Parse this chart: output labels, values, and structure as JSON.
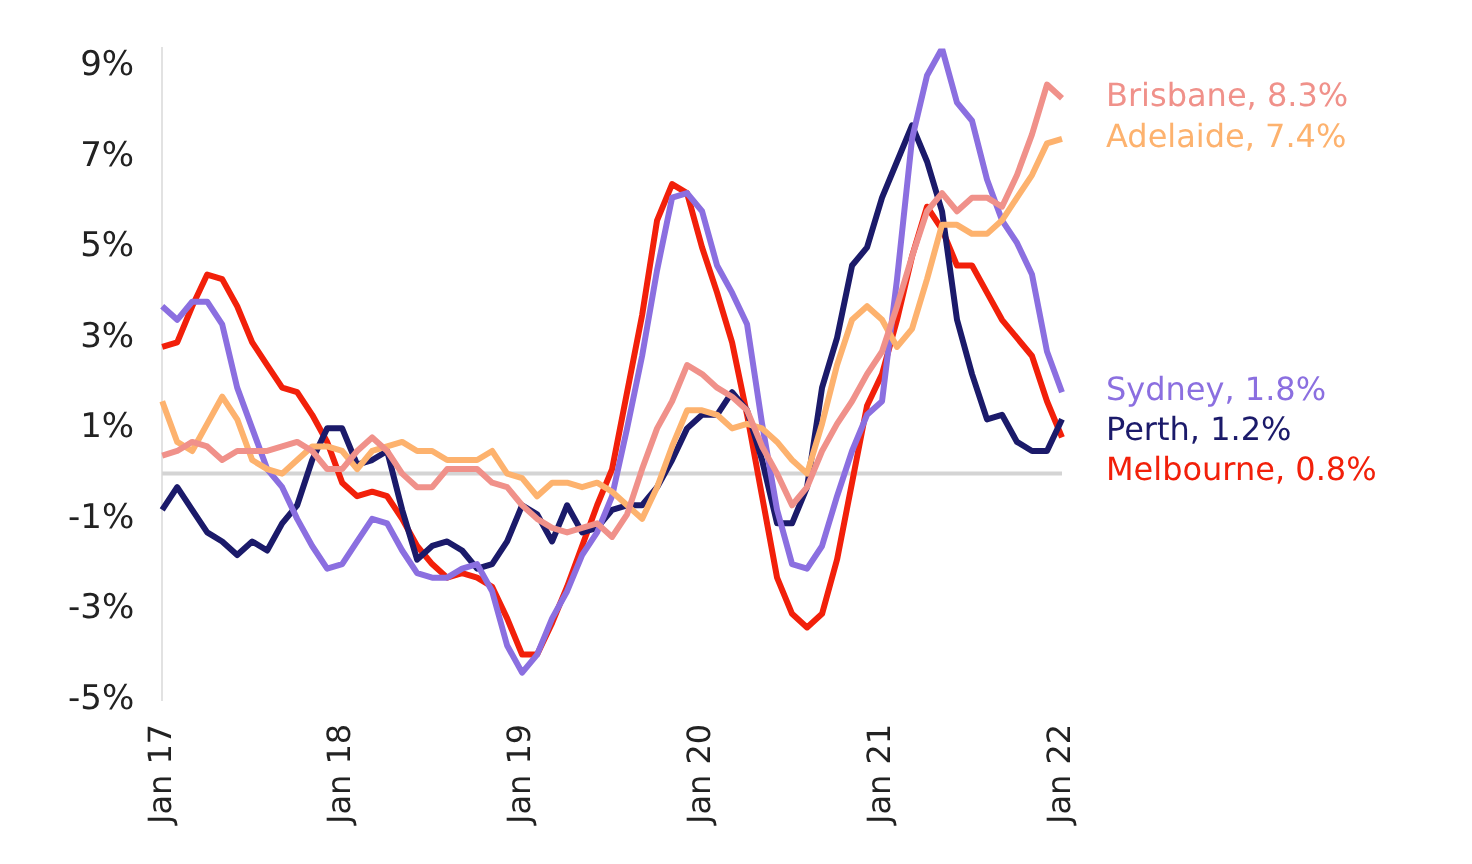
{
  "chart_data": {
    "type": "line",
    "categories": [
      "Jan 17",
      null,
      null,
      null,
      null,
      null,
      null,
      null,
      null,
      null,
      null,
      null,
      "Jan 18",
      null,
      null,
      null,
      null,
      null,
      null,
      null,
      null,
      null,
      null,
      null,
      "Jan 19",
      null,
      null,
      null,
      null,
      null,
      null,
      null,
      null,
      null,
      null,
      null,
      "Jan 20",
      null,
      null,
      null,
      null,
      null,
      null,
      null,
      null,
      null,
      null,
      null,
      "Jan 21",
      null,
      null,
      null,
      null,
      null,
      null,
      null,
      null,
      null,
      null,
      null,
      "Jan 22"
    ],
    "series": [
      {
        "name": "Brisbane, 8.3%",
        "color": "#f0918a",
        "values": [
          0.4,
          0.5,
          0.7,
          0.6,
          0.3,
          0.5,
          0.5,
          0.5,
          0.6,
          0.7,
          0.5,
          0.1,
          0.1,
          0.5,
          0.8,
          0.5,
          0.0,
          -0.3,
          -0.3,
          0.1,
          0.1,
          0.1,
          -0.2,
          -0.3,
          -0.7,
          -1.0,
          -1.2,
          -1.3,
          -1.2,
          -1.1,
          -1.4,
          -0.9,
          0.1,
          1.0,
          1.6,
          2.4,
          2.2,
          1.9,
          1.7,
          1.4,
          0.6,
          0.0,
          -0.7,
          -0.3,
          0.5,
          1.1,
          1.6,
          2.2,
          2.7,
          3.7,
          4.8,
          5.8,
          6.2,
          5.8,
          6.1,
          6.1,
          5.9,
          6.6,
          7.5,
          8.6,
          8.3
        ]
      },
      {
        "name": "Adelaide, 7.4%",
        "color": "#fdb26e",
        "values": [
          1.6,
          0.7,
          0.5,
          1.1,
          1.7,
          1.2,
          0.3,
          0.1,
          0.0,
          0.3,
          0.6,
          0.6,
          0.5,
          0.1,
          0.5,
          0.6,
          0.7,
          0.5,
          0.5,
          0.3,
          0.3,
          0.3,
          0.5,
          0.0,
          -0.1,
          -0.5,
          -0.2,
          -0.2,
          -0.3,
          -0.2,
          -0.4,
          -0.7,
          -1.0,
          -0.3,
          0.6,
          1.4,
          1.4,
          1.3,
          1.0,
          1.1,
          1.0,
          0.7,
          0.3,
          0.0,
          1.1,
          2.4,
          3.4,
          3.7,
          3.4,
          2.8,
          3.2,
          4.3,
          5.5,
          5.5,
          5.3,
          5.3,
          5.6,
          6.1,
          6.6,
          7.3,
          7.4
        ]
      },
      {
        "name": "Sydney, 1.8%",
        "color": "#8b6fe0",
        "values": [
          3.7,
          3.4,
          3.8,
          3.8,
          3.3,
          1.9,
          1.0,
          0.1,
          -0.3,
          -1.0,
          -1.6,
          -2.1,
          -2.0,
          -1.5,
          -1.0,
          -1.1,
          -1.7,
          -2.2,
          -2.3,
          -2.3,
          -2.1,
          -2.0,
          -2.6,
          -3.8,
          -4.4,
          -4.0,
          -3.2,
          -2.6,
          -1.8,
          -1.3,
          -0.5,
          1.0,
          2.6,
          4.5,
          6.1,
          6.2,
          5.8,
          4.6,
          4.0,
          3.3,
          1.1,
          -0.8,
          -2.0,
          -2.1,
          -1.6,
          -0.5,
          0.5,
          1.3,
          1.6,
          4.3,
          7.4,
          8.8,
          9.4,
          8.2,
          7.8,
          6.5,
          5.6,
          5.1,
          4.4,
          2.7,
          1.8
        ]
      },
      {
        "name": "Perth, 1.2%",
        "color": "#1b1a6a",
        "values": [
          -0.8,
          -0.3,
          -0.8,
          -1.3,
          -1.5,
          -1.8,
          -1.5,
          -1.7,
          -1.1,
          -0.7,
          0.3,
          1.0,
          1.0,
          0.2,
          0.3,
          0.5,
          -0.8,
          -1.9,
          -1.6,
          -1.5,
          -1.7,
          -2.1,
          -2.0,
          -1.5,
          -0.7,
          -0.9,
          -1.5,
          -0.7,
          -1.3,
          -1.2,
          -0.8,
          -0.7,
          -0.7,
          -0.3,
          0.3,
          1.0,
          1.3,
          1.3,
          1.8,
          1.4,
          0.3,
          -1.1,
          -1.1,
          -0.3,
          1.9,
          3.0,
          4.6,
          5.0,
          6.1,
          6.9,
          7.7,
          6.9,
          5.8,
          3.4,
          2.2,
          1.2,
          1.3,
          0.7,
          0.5,
          0.5,
          1.2
        ]
      },
      {
        "name": "Melbourne, 0.8%",
        "color": "#f2200a",
        "values": [
          2.8,
          2.9,
          3.7,
          4.4,
          4.3,
          3.7,
          2.9,
          2.4,
          1.9,
          1.8,
          1.3,
          0.7,
          -0.2,
          -0.5,
          -0.4,
          -0.5,
          -1.0,
          -1.6,
          -2.0,
          -2.3,
          -2.2,
          -2.3,
          -2.5,
          -3.2,
          -4.0,
          -4.0,
          -3.3,
          -2.5,
          -1.6,
          -0.7,
          0.1,
          1.8,
          3.5,
          5.6,
          6.4,
          6.2,
          5.0,
          4.0,
          2.9,
          1.3,
          -0.5,
          -2.3,
          -3.1,
          -3.4,
          -3.1,
          -1.9,
          -0.2,
          1.5,
          2.2,
          3.4,
          4.8,
          5.9,
          5.4,
          4.6,
          4.6,
          4.0,
          3.4,
          3.0,
          2.6,
          1.6,
          0.8
        ]
      }
    ],
    "ylim": [
      -5,
      9.4
    ],
    "yticks": [
      {
        "value": -5,
        "label": "-5%"
      },
      {
        "value": -3,
        "label": "-3%"
      },
      {
        "value": -1,
        "label": "-1%"
      },
      {
        "value": 1,
        "label": "1%"
      },
      {
        "value": 3,
        "label": "3%"
      },
      {
        "value": 5,
        "label": "5%"
      },
      {
        "value": 7,
        "label": "7%"
      },
      {
        "value": 9,
        "label": "9%"
      }
    ],
    "ref_lines": [
      {
        "axis": "y",
        "value": 0,
        "color": "#d4d4d4"
      }
    ],
    "grid": false,
    "legend": false
  }
}
